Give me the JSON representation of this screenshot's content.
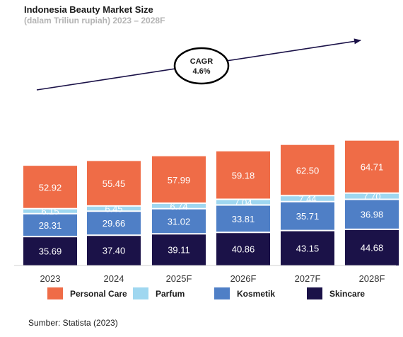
{
  "title": "Indonesia Beauty Market Size",
  "subtitle": "(dalam Triliun rupiah) 2023 – 2028F",
  "source": "Sumber: Statista (2023)",
  "cagr": {
    "line1": "CAGR",
    "line2": "4.6%"
  },
  "colors": {
    "Personal Care": "#ef6c47",
    "Parfum": "#9fd7f0",
    "Kosmetik": "#4f7fc6",
    "Skincare": "#1b1248"
  },
  "chart_data": {
    "type": "bar",
    "stacked": true,
    "categories": [
      "2023",
      "2024",
      "2025F",
      "2026F",
      "2027F",
      "2028F"
    ],
    "series": [
      {
        "name": "Skincare",
        "values": [
          35.69,
          37.4,
          39.11,
          40.86,
          43.15,
          44.68
        ]
      },
      {
        "name": "Kosmetik",
        "values": [
          28.31,
          29.66,
          31.02,
          33.81,
          35.71,
          36.98
        ]
      },
      {
        "name": "Parfum",
        "values": [
          6.15,
          6.45,
          6.74,
          7.04,
          7.44,
          7.7
        ]
      },
      {
        "name": "Personal Care",
        "values": [
          52.92,
          55.45,
          57.99,
          59.18,
          62.5,
          64.71
        ]
      }
    ],
    "legend": [
      "Personal Care",
      "Parfum",
      "Kosmetik",
      "Skincare"
    ],
    "legend_position": "bottom",
    "grid": false
  }
}
